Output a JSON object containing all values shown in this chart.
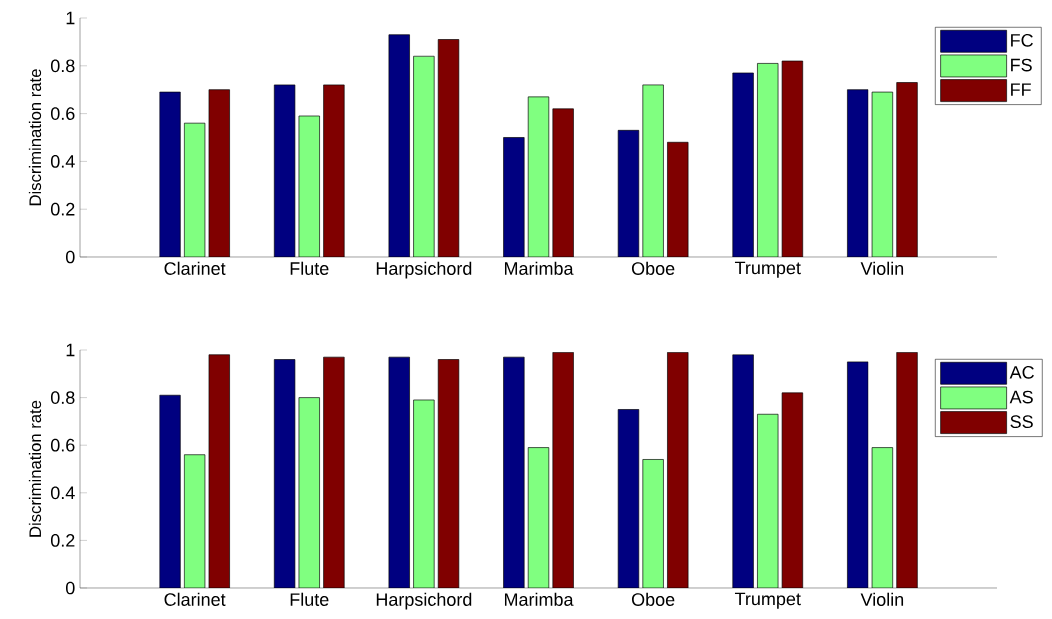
{
  "chart_data": [
    {
      "type": "bar",
      "ylabel": "Discrimination rate",
      "categories": [
        "Clarinet",
        "Flute",
        "Harpsichord",
        "Marimba",
        "Oboe",
        "Trumpet",
        "Violin"
      ],
      "series": [
        {
          "name": "FC",
          "color": "#000080",
          "values": [
            0.69,
            0.72,
            0.93,
            0.5,
            0.53,
            0.77,
            0.7
          ]
        },
        {
          "name": "FS",
          "color": "#80ff80",
          "values": [
            0.56,
            0.59,
            0.84,
            0.67,
            0.72,
            0.81,
            0.69
          ]
        },
        {
          "name": "FF",
          "color": "#800000",
          "values": [
            0.7,
            0.72,
            0.91,
            0.62,
            0.48,
            0.82,
            0.73
          ]
        }
      ],
      "ylim": [
        0,
        1
      ],
      "yticks": [
        0,
        0.2,
        0.4,
        0.6,
        0.8,
        1
      ],
      "grid": false,
      "legend": "top right"
    },
    {
      "type": "bar",
      "ylabel": "Discrimination rate",
      "categories": [
        "Clarinet",
        "Flute",
        "Harpsichord",
        "Marimba",
        "Oboe",
        "Trumpet",
        "Violin"
      ],
      "series": [
        {
          "name": "AC",
          "color": "#000080",
          "values": [
            0.81,
            0.96,
            0.97,
            0.97,
            0.75,
            0.98,
            0.95
          ]
        },
        {
          "name": "AS",
          "color": "#80ff80",
          "values": [
            0.56,
            0.8,
            0.79,
            0.59,
            0.54,
            0.73,
            0.59
          ]
        },
        {
          "name": "SS",
          "color": "#800000",
          "values": [
            0.98,
            0.97,
            0.96,
            0.99,
            0.99,
            0.82,
            0.99
          ]
        }
      ],
      "ylim": [
        0,
        1
      ],
      "yticks": [
        0,
        0.2,
        0.4,
        0.6,
        0.8,
        1
      ],
      "grid": false,
      "legend": "top right"
    }
  ]
}
